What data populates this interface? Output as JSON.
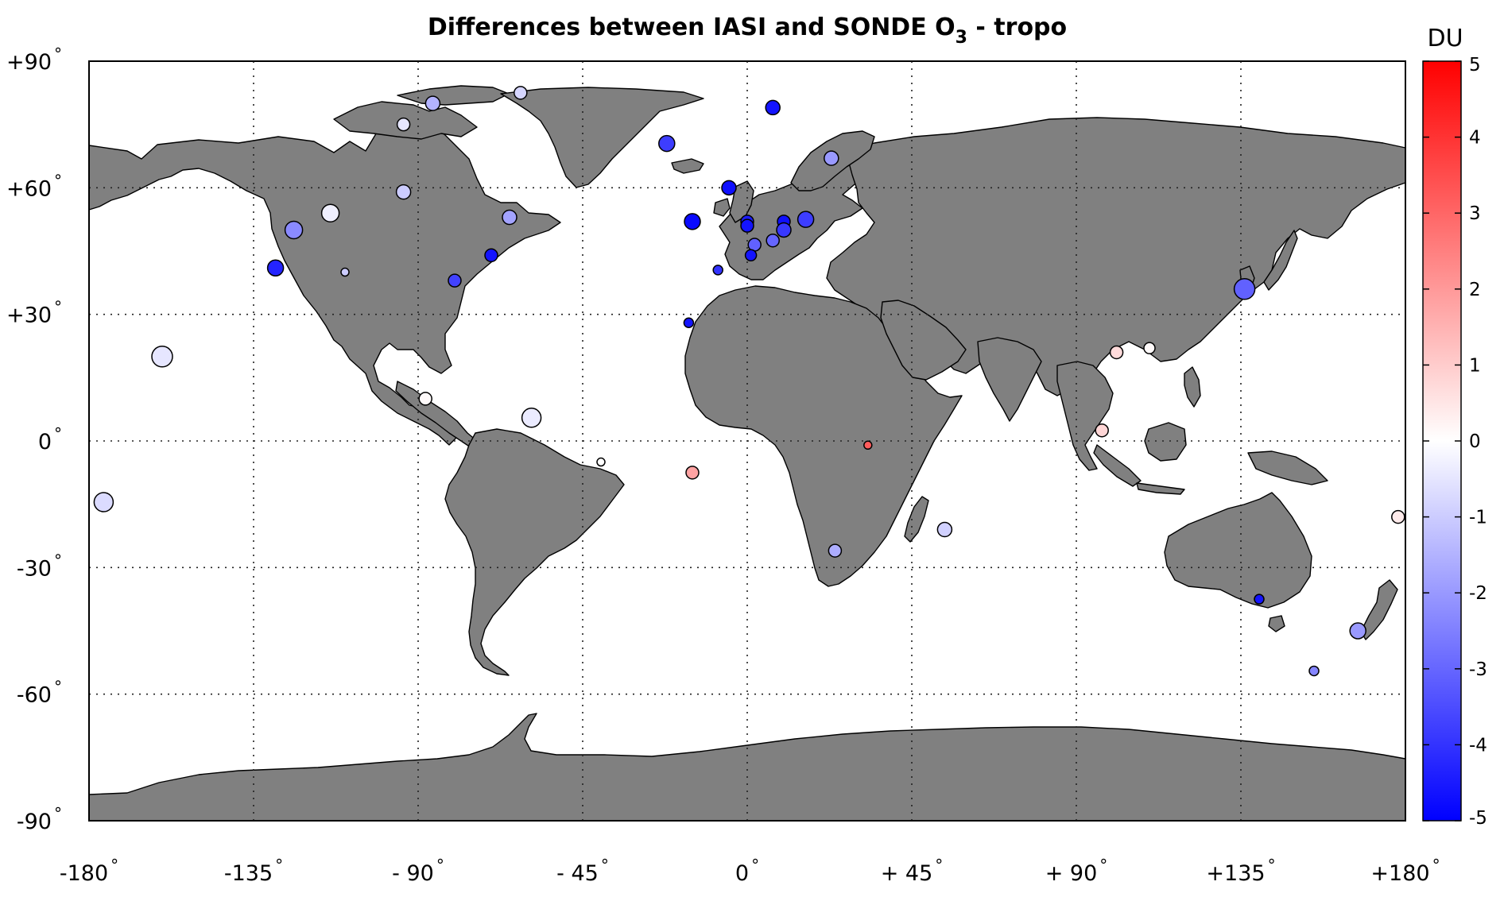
{
  "title": {
    "main": "Differences between IASI and SONDE O",
    "subscript": "3",
    "suffix": " - tropo"
  },
  "colorbar": {
    "unit": "DU",
    "min": -5,
    "max": 5,
    "ticks": [
      5,
      4,
      3,
      2,
      1,
      0,
      -1,
      -2,
      -3,
      -4,
      -5
    ],
    "tick_labels": [
      "5",
      "4",
      "3",
      "2",
      "1",
      "0",
      "-1",
      "-2",
      "-3",
      "-4",
      "-5"
    ],
    "colormap": [
      "#0000ff",
      "#ffffff",
      "#ff0000"
    ]
  },
  "map": {
    "lon_range": [
      -180,
      180
    ],
    "lat_range": [
      -90,
      90
    ],
    "land_color": "#808080",
    "ocean_color": "#ffffff",
    "grid": true,
    "x_ticks": [
      -180,
      -135,
      -90,
      -45,
      0,
      45,
      90,
      135,
      180
    ],
    "x_tick_labels": [
      "-180",
      "-135",
      "- 90",
      "- 45",
      "0",
      "+ 45",
      "+ 90",
      "+135",
      "+180"
    ],
    "y_ticks": [
      90,
      60,
      30,
      0,
      -30,
      -60,
      -90
    ],
    "y_tick_labels": [
      "+90",
      "+60",
      "+30",
      "0",
      "-30",
      "-60",
      "-90"
    ],
    "degree_mark": "°"
  },
  "stations": [
    {
      "lon": -62,
      "lat": 82.5,
      "value": -0.8,
      "size": 8
    },
    {
      "lon": -86,
      "lat": 80,
      "value": -1.5,
      "size": 9
    },
    {
      "lon": -94,
      "lat": 75,
      "value": -0.5,
      "size": 8
    },
    {
      "lon": -22,
      "lat": 70.5,
      "value": -3.8,
      "size": 10
    },
    {
      "lon": 7,
      "lat": 79,
      "value": -4.6,
      "size": 9
    },
    {
      "lon": 23,
      "lat": 67,
      "value": -2.0,
      "size": 9
    },
    {
      "lon": -5,
      "lat": 60,
      "value": -4.7,
      "size": 9
    },
    {
      "lon": -94,
      "lat": 59,
      "value": -1.0,
      "size": 9
    },
    {
      "lon": -114,
      "lat": 54,
      "value": -0.3,
      "size": 11
    },
    {
      "lon": -124,
      "lat": 50,
      "value": -2.3,
      "size": 11
    },
    {
      "lon": -65,
      "lat": 53,
      "value": -1.8,
      "size": 9
    },
    {
      "lon": -15,
      "lat": 52,
      "value": -4.8,
      "size": 10
    },
    {
      "lon": 0,
      "lat": 52,
      "value": -4.5,
      "size": 8
    },
    {
      "lon": 0,
      "lat": 51,
      "value": -4.6,
      "size": 8
    },
    {
      "lon": 10,
      "lat": 52,
      "value": -4.7,
      "size": 8
    },
    {
      "lon": 16,
      "lat": 52.5,
      "value": -3.8,
      "size": 10
    },
    {
      "lon": 10,
      "lat": 50,
      "value": -3.9,
      "size": 9
    },
    {
      "lon": 7,
      "lat": 47.5,
      "value": -3.0,
      "size": 8
    },
    {
      "lon": 2,
      "lat": 46.5,
      "value": -3.1,
      "size": 8
    },
    {
      "lon": 1,
      "lat": 44,
      "value": -4.6,
      "size": 7
    },
    {
      "lon": -8,
      "lat": 40.5,
      "value": -4.0,
      "size": 6
    },
    {
      "lon": -129,
      "lat": 41,
      "value": -4.3,
      "size": 10
    },
    {
      "lon": -110,
      "lat": 40,
      "value": -1.0,
      "size": 5
    },
    {
      "lon": -70,
      "lat": 44,
      "value": -4.6,
      "size": 8
    },
    {
      "lon": -80,
      "lat": 38,
      "value": -3.7,
      "size": 8
    },
    {
      "lon": 136,
      "lat": 36,
      "value": -3.1,
      "size": 13
    },
    {
      "lon": -16,
      "lat": 28,
      "value": -4.6,
      "size": 6
    },
    {
      "lon": -160,
      "lat": 20,
      "value": -0.5,
      "size": 13
    },
    {
      "lon": 101,
      "lat": 21,
      "value": 0.7,
      "size": 8
    },
    {
      "lon": 110,
      "lat": 22,
      "value": 0.1,
      "size": 7
    },
    {
      "lon": -88,
      "lat": 10,
      "value": 0.1,
      "size": 8
    },
    {
      "lon": -59,
      "lat": 5.5,
      "value": -0.4,
      "size": 12
    },
    {
      "lon": 97,
      "lat": 2.5,
      "value": 0.8,
      "size": 8
    },
    {
      "lon": 33,
      "lat": -1,
      "value": 3.2,
      "size": 5
    },
    {
      "lon": -40,
      "lat": -5,
      "value": 0.0,
      "size": 5
    },
    {
      "lon": -15,
      "lat": -7.5,
      "value": 1.8,
      "size": 8
    },
    {
      "lon": -176,
      "lat": -14.5,
      "value": -0.7,
      "size": 12
    },
    {
      "lon": 54,
      "lat": -21,
      "value": -0.9,
      "size": 9
    },
    {
      "lon": 24,
      "lat": -26,
      "value": -1.6,
      "size": 8
    },
    {
      "lon": 178,
      "lat": -18,
      "value": 0.4,
      "size": 8
    },
    {
      "lon": 140,
      "lat": -37.5,
      "value": -4.6,
      "size": 6
    },
    {
      "lon": 167,
      "lat": -45,
      "value": -2.0,
      "size": 10
    },
    {
      "lon": 155,
      "lat": -54.5,
      "value": -2.4,
      "size": 6
    }
  ]
}
